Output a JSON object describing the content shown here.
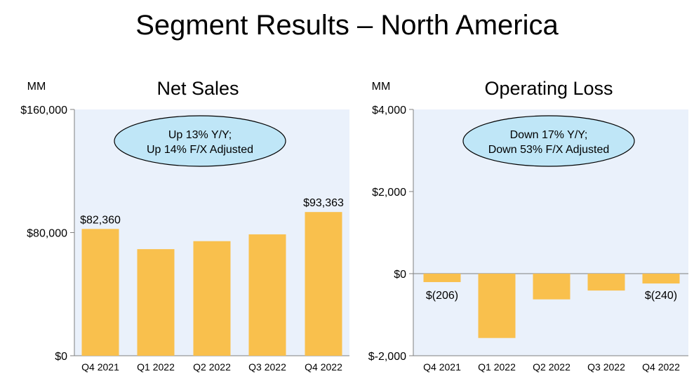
{
  "page": {
    "title": "Segment Results – North America"
  },
  "colors": {
    "bar": "#F9C04D",
    "plot_bg": "#EAF1FB",
    "callout_fill": "#BFE6F7",
    "callout_stroke": "#000000",
    "axis": "#7F7F7F"
  },
  "chart_data": [
    {
      "type": "bar",
      "title": "Net Sales",
      "unit": "MM",
      "categories": [
        "Q4 2021",
        "Q1 2022",
        "Q2 2022",
        "Q3 2022",
        "Q4 2022"
      ],
      "values": [
        82360,
        69244,
        74430,
        78843,
        93363
      ],
      "ylim": [
        0,
        160000
      ],
      "yticks": [
        0,
        80000,
        160000
      ],
      "ytick_labels": [
        "$0",
        "$80,000",
        "$160,000"
      ],
      "data_labels": [
        {
          "index": 0,
          "text": "$82,360"
        },
        {
          "index": 4,
          "text": "$93,363"
        }
      ],
      "callout": [
        "Up 13% Y/Y;",
        "Up 14% F/X Adjusted"
      ]
    },
    {
      "type": "bar",
      "title": "Operating Loss",
      "unit": "MM",
      "categories": [
        "Q4 2021",
        "Q1 2022",
        "Q2 2022",
        "Q3 2022",
        "Q4 2022"
      ],
      "values": [
        -206,
        -1568,
        -627,
        -412,
        -240
      ],
      "ylim": [
        -2000,
        4000
      ],
      "yticks": [
        -2000,
        0,
        2000,
        4000
      ],
      "ytick_labels": [
        "$-2,000",
        "$0",
        "$2,000",
        "$4,000"
      ],
      "data_labels": [
        {
          "index": 0,
          "text": "$(206)"
        },
        {
          "index": 4,
          "text": "$(240)"
        }
      ],
      "callout": [
        "Down 17% Y/Y;",
        "Down 53% F/X Adjusted"
      ]
    }
  ]
}
